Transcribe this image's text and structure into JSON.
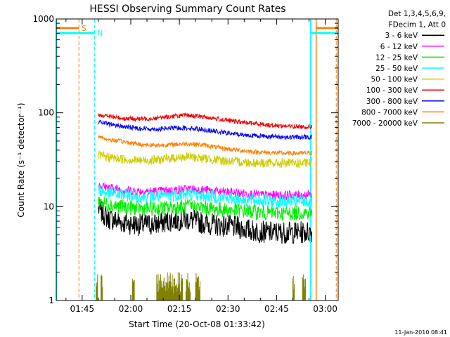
{
  "chart_data": {
    "type": "line",
    "title": "HESSI Observing Summary Count Rates",
    "xlabel": "Start Time (20-Oct-08 01:33:42)",
    "ylabel": "Count Rate (s⁻¹ detector⁻¹)",
    "yscale": "log",
    "ylim": [
      1,
      1000
    ],
    "xlim_minutes": [
      97,
      184
    ],
    "x_ticks": [
      {
        "m": 105,
        "label": "01:45"
      },
      {
        "m": 120,
        "label": "02:00"
      },
      {
        "m": 135,
        "label": "02:15"
      },
      {
        "m": 150,
        "label": "02:30"
      },
      {
        "m": 165,
        "label": "02:45"
      },
      {
        "m": 180,
        "label": "03:00"
      }
    ],
    "y_ticks": [
      {
        "v": 1,
        "label": "1"
      },
      {
        "v": 10,
        "label": "10"
      },
      {
        "v": 100,
        "label": "100"
      },
      {
        "v": 1000,
        "label": "1000"
      }
    ],
    "legend": {
      "header": [
        "Det 1,3,4,5,6,9,",
        "FDecim 1, Att 0"
      ],
      "placement": "right"
    },
    "series": [
      {
        "name": "3 - 6 keV",
        "color": "#000000",
        "x": [
          110,
          113,
          118,
          123,
          128,
          133,
          138,
          143,
          148,
          153,
          158,
          163,
          168,
          173,
          176
        ],
        "y": [
          9.5,
          7.5,
          6.7,
          6.4,
          6.5,
          7.2,
          7.3,
          6.6,
          6.3,
          6.0,
          5.5,
          5.3,
          5.3,
          5.3,
          5.4
        ]
      },
      {
        "name": "6 - 12 keV",
        "color": "#ff00ff",
        "x": [
          110,
          113,
          118,
          123,
          128,
          133,
          138,
          143,
          148,
          153,
          158,
          163,
          168,
          173,
          176
        ],
        "y": [
          17,
          16,
          15,
          14.6,
          14.5,
          15,
          15.4,
          15,
          14.4,
          14,
          13.5,
          13.2,
          13.2,
          13.3,
          13.5
        ]
      },
      {
        "name": "12 - 25 keV",
        "color": "#00ee00",
        "x": [
          110,
          113,
          118,
          123,
          128,
          133,
          138,
          143,
          148,
          153,
          158,
          163,
          168,
          173,
          176
        ],
        "y": [
          11.5,
          10.5,
          9.9,
          9.6,
          9.5,
          9.8,
          10.1,
          9.7,
          9.3,
          9.1,
          8.8,
          8.6,
          8.5,
          8.6,
          8.7
        ]
      },
      {
        "name": "25 - 50 keV",
        "color": "#00ffff",
        "x": [
          110,
          113,
          118,
          123,
          128,
          133,
          138,
          143,
          148,
          153,
          158,
          163,
          168,
          173,
          176
        ],
        "y": [
          15,
          14,
          13.3,
          12.9,
          12.8,
          13.3,
          13.6,
          13.1,
          12.6,
          12.1,
          11.7,
          11.4,
          11.3,
          11.3,
          11.4
        ]
      },
      {
        "name": "50 - 100 keV",
        "color": "#cccc00",
        "x": [
          110,
          113,
          118,
          123,
          128,
          133,
          138,
          143,
          148,
          153,
          158,
          163,
          168,
          173,
          176
        ],
        "y": [
          35,
          33.5,
          32,
          31,
          31.5,
          33,
          34,
          32.5,
          31,
          30,
          29.5,
          29,
          29,
          29,
          29.3
        ]
      },
      {
        "name": "100 - 300 keV",
        "color": "#ee0000",
        "x": [
          110,
          113,
          118,
          123,
          128,
          133,
          138,
          143,
          148,
          153,
          158,
          163,
          168,
          173,
          176
        ],
        "y": [
          96,
          92,
          87,
          86,
          88,
          92,
          94,
          90,
          85,
          80,
          77,
          74,
          72,
          71,
          71
        ]
      },
      {
        "name": "300 - 800 keV",
        "color": "#0000ee",
        "x": [
          110,
          113,
          118,
          123,
          128,
          133,
          138,
          143,
          148,
          153,
          158,
          163,
          168,
          173,
          176
        ],
        "y": [
          80,
          76,
          71,
          68,
          67,
          69,
          69,
          66,
          62,
          59,
          57,
          56,
          55,
          55,
          55
        ]
      },
      {
        "name": "800 - 7000 keV",
        "color": "#ff8000",
        "x": [
          110,
          113,
          118,
          123,
          128,
          133,
          138,
          143,
          148,
          153,
          158,
          163,
          168,
          173,
          176
        ],
        "y": [
          56,
          52,
          49,
          46,
          45,
          46,
          47,
          45,
          42,
          40,
          38.5,
          37.5,
          37,
          37,
          37.5
        ]
      },
      {
        "name": "7000 - 20000 keV",
        "color": "#808000",
        "x": [],
        "y": []
      }
    ],
    "flags": [
      {
        "name": "S",
        "color": "#ff8000"
      },
      {
        "name": "N",
        "color": "#00ffff"
      }
    ],
    "footer_date": "11-Jan-2010 08:41"
  }
}
